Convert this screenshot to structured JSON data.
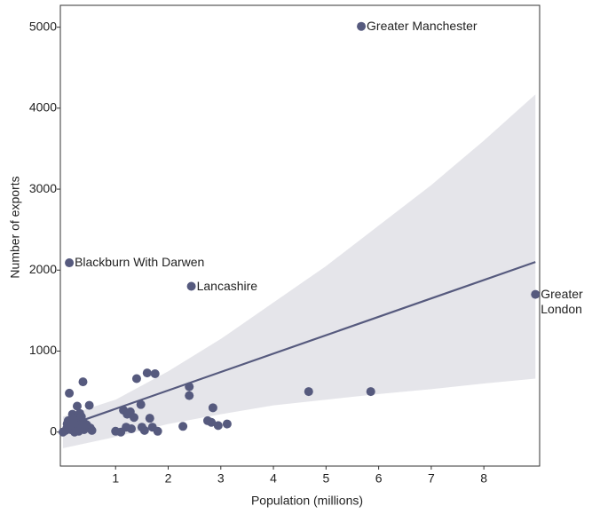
{
  "chart_data": {
    "type": "scatter",
    "x_label": "Population (millions)",
    "y_label": "Number of exports",
    "xlim": [
      -0.05,
      9.06
    ],
    "ylim": [
      -420,
      5270
    ],
    "xticks": [
      1,
      2,
      3,
      4,
      5,
      6,
      7,
      8
    ],
    "yticks": [
      0,
      1000,
      2000,
      3000,
      4000,
      5000
    ],
    "series": [
      {
        "color": "#565a7e",
        "x": [
          0.0,
          0.05,
          0.08,
          0.1,
          0.12,
          0.15,
          0.18,
          0.2,
          0.22,
          0.25,
          0.27,
          0.28,
          0.3,
          0.32,
          0.33,
          0.35,
          0.38,
          0.4,
          0.42,
          0.45,
          0.5,
          0.52,
          0.55,
          0.3,
          0.2,
          0.15,
          1.0,
          1.1,
          1.15,
          1.2,
          1.22,
          1.28,
          1.3,
          1.35,
          1.4,
          1.48,
          1.5,
          1.55,
          1.6,
          1.65,
          1.7,
          1.75,
          1.8,
          2.28,
          2.4,
          2.4,
          2.75,
          2.82,
          2.85,
          2.95,
          3.12,
          4.67,
          5.85,
          0.12,
          2.44,
          5.67,
          8.98
        ],
        "values": [
          0,
          20,
          100,
          140,
          480,
          30,
          220,
          60,
          0,
          170,
          320,
          120,
          80,
          230,
          40,
          190,
          620,
          30,
          100,
          90,
          330,
          50,
          20,
          10,
          150,
          90,
          10,
          0,
          270,
          60,
          220,
          250,
          40,
          180,
          660,
          340,
          60,
          20,
          730,
          170,
          60,
          720,
          10,
          70,
          560,
          450,
          140,
          120,
          300,
          80,
          100,
          500,
          500,
          2090,
          1800,
          5010,
          1700
        ],
        "labels": [
          null,
          null,
          null,
          null,
          null,
          null,
          null,
          null,
          null,
          null,
          null,
          null,
          null,
          null,
          null,
          null,
          null,
          null,
          null,
          null,
          null,
          null,
          null,
          null,
          null,
          null,
          null,
          null,
          null,
          null,
          null,
          null,
          null,
          null,
          null,
          null,
          null,
          null,
          null,
          null,
          null,
          null,
          null,
          null,
          null,
          null,
          null,
          null,
          null,
          null,
          null,
          null,
          null,
          "Blackburn With Darwen",
          "Lancashire",
          "Greater Manchester",
          "Greater London"
        ]
      }
    ],
    "fit": {
      "color": "#565a7e",
      "x": [
        0,
        8.98
      ],
      "values": [
        60,
        2100
      ]
    },
    "band": {
      "color": "#e5e5ea",
      "x": [
        0,
        1,
        2,
        3,
        4,
        5,
        6,
        7,
        8,
        8.98
      ],
      "upper": [
        190,
        400,
        750,
        1150,
        1600,
        2050,
        2550,
        3050,
        3600,
        4170
      ],
      "lower": [
        -200,
        -60,
        100,
        220,
        330,
        400,
        470,
        530,
        600,
        660
      ]
    }
  }
}
